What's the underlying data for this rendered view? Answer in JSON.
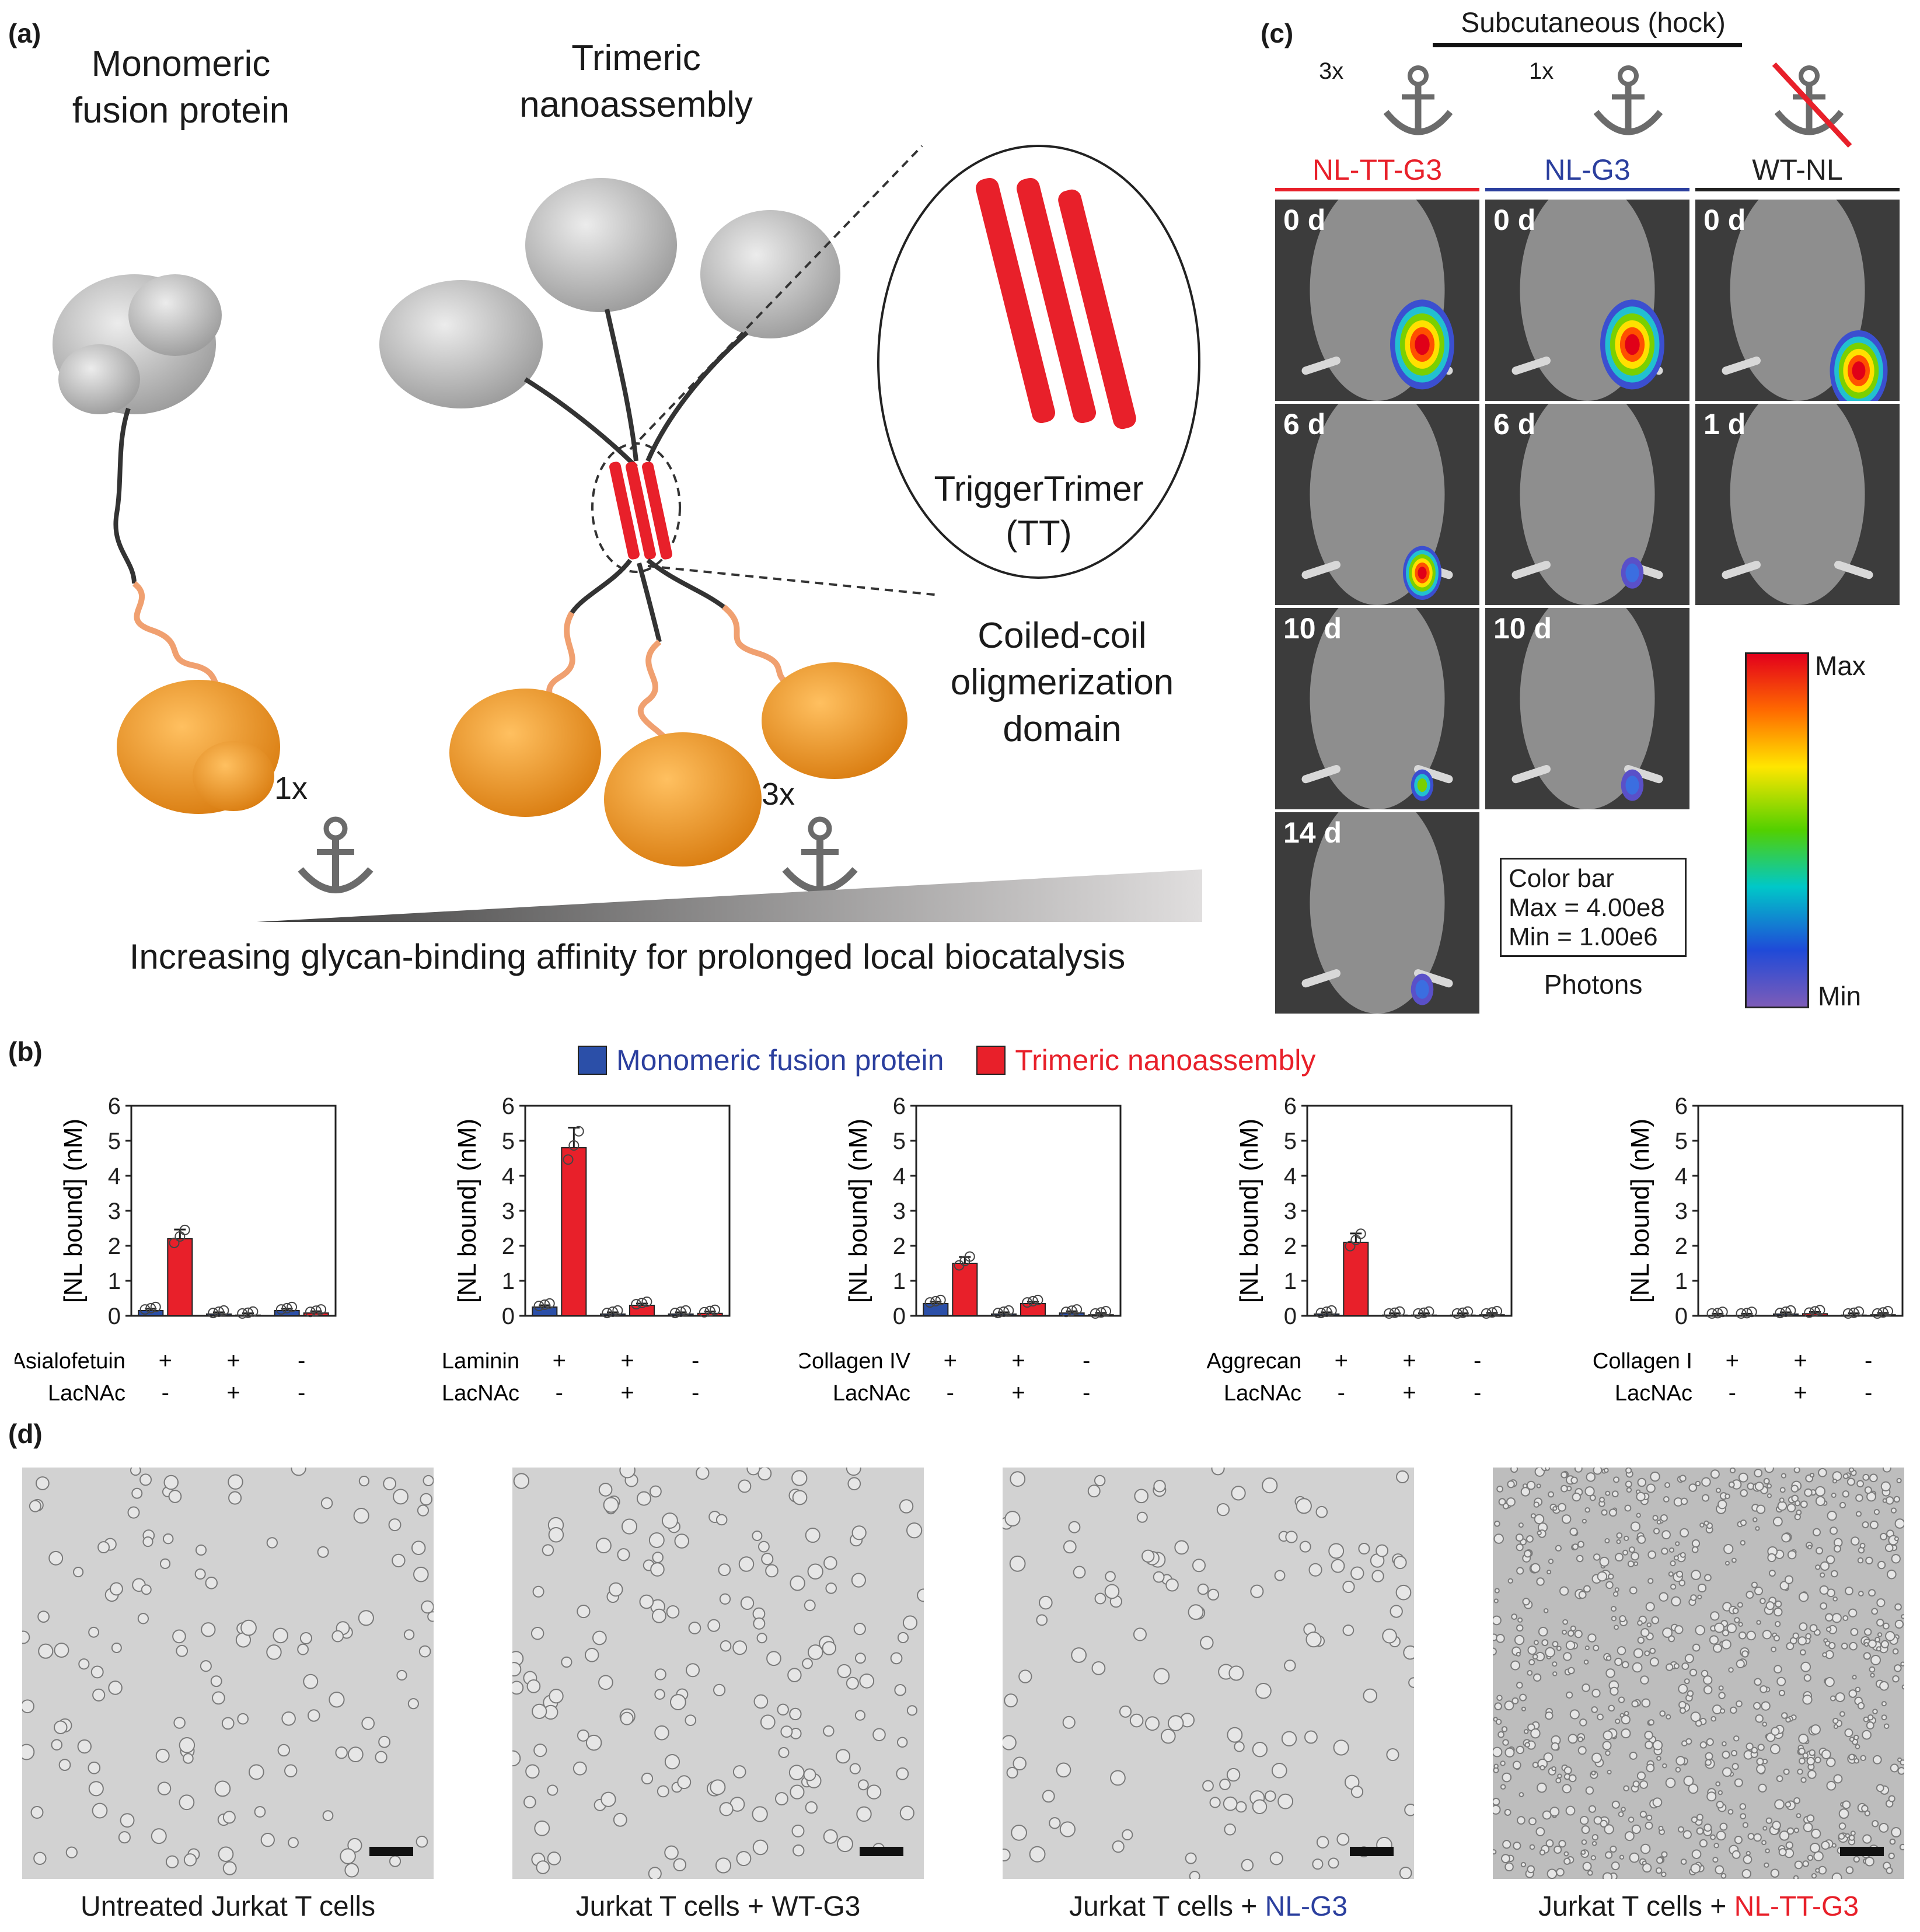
{
  "panel_a": {
    "label": "(a)",
    "monomer_title": [
      "Monomeric",
      "fusion protein"
    ],
    "trimer_title": [
      "Trimeric",
      "nanoassembly"
    ],
    "tt_label": [
      "TriggerTrimer",
      "(TT)"
    ],
    "coil_label": [
      "Coiled-coil",
      "oligmerization",
      "domain"
    ],
    "anchor_1x": "1x",
    "anchor_3x": "3x",
    "affinity_caption": "Increasing glycan-binding affinity for prolonged local biocatalysis",
    "colors": {
      "grey_domain": "#c8c8c8",
      "orange_domain": "#f5a12b",
      "tt_red": "#e8202a",
      "linker": "#333333",
      "glycan_linker": "#f0a070"
    }
  },
  "panel_c": {
    "label": "(c)",
    "route": "Subcutaneous (hock)",
    "groups": [
      {
        "name": "NL-TT-G3",
        "anchor": "3x",
        "color": "#e8202a",
        "crossed": false
      },
      {
        "name": "NL-G3",
        "anchor": "1x",
        "color": "#2b3f9e",
        "crossed": false
      },
      {
        "name": "WT-NL",
        "anchor": "",
        "color": "#222222",
        "crossed": true
      }
    ],
    "tiles": [
      [
        "0 d",
        "0 d",
        "0 d"
      ],
      [
        "6 d",
        "6 d",
        "1 d"
      ],
      [
        "10 d",
        "10 d"
      ],
      [
        "14 d"
      ]
    ],
    "colorbar": {
      "title": "Color bar",
      "max_line": "Max = 4.00e8",
      "min_line": "Min = 1.00e6",
      "unit": "Photons",
      "max_label": "Max",
      "min_label": "Min"
    }
  },
  "panel_b": {
    "label": "(b)",
    "legend": [
      {
        "name": "Monomeric fusion protein",
        "color": "#2b4fa8"
      },
      {
        "name": "Trimeric nanoassembly",
        "color": "#e8202a"
      }
    ],
    "ylabel": "[NL bound] (nM)",
    "ylim": [
      0,
      6
    ],
    "yticks": [
      "0",
      "1",
      "2",
      "3",
      "4",
      "5",
      "6"
    ],
    "lacnac_label": "LacNAc",
    "conditions": [
      {
        "substrate": "+",
        "lacnac": "-"
      },
      {
        "substrate": "+",
        "lacnac": "+"
      },
      {
        "substrate": "-",
        "lacnac": "-"
      }
    ]
  },
  "chart_data": [
    {
      "type": "bar",
      "substrate": "Asialofetuin",
      "categories": [
        "+/-",
        "+/+",
        "-/-"
      ],
      "series": [
        {
          "name": "Monomeric fusion protein",
          "values": [
            0.15,
            0.05,
            0.15
          ]
        },
        {
          "name": "Trimeric nanoassembly",
          "values": [
            2.2,
            0.02,
            0.08
          ]
        }
      ],
      "ylabel": "[NL bound] (nM)",
      "ylim": [
        0,
        6
      ]
    },
    {
      "type": "bar",
      "substrate": "Laminin",
      "categories": [
        "+/-",
        "+/+",
        "-/-"
      ],
      "series": [
        {
          "name": "Monomeric fusion protein",
          "values": [
            0.25,
            0.05,
            0.05
          ]
        },
        {
          "name": "Trimeric nanoassembly",
          "values": [
            4.8,
            0.3,
            0.07
          ]
        }
      ],
      "ylabel": "[NL bound] (nM)",
      "ylim": [
        0,
        6
      ]
    },
    {
      "type": "bar",
      "substrate": "Collagen IV",
      "categories": [
        "+/-",
        "+/+",
        "-/-"
      ],
      "series": [
        {
          "name": "Monomeric fusion protein",
          "values": [
            0.35,
            0.05,
            0.08
          ]
        },
        {
          "name": "Trimeric nanoassembly",
          "values": [
            1.5,
            0.35,
            0.03
          ]
        }
      ],
      "ylabel": "[NL bound] (nM)",
      "ylim": [
        0,
        6
      ]
    },
    {
      "type": "bar",
      "substrate": "Aggrecan",
      "categories": [
        "+/-",
        "+/+",
        "-/-"
      ],
      "series": [
        {
          "name": "Monomeric fusion protein",
          "values": [
            0.05,
            0.02,
            0.02
          ]
        },
        {
          "name": "Trimeric nanoassembly",
          "values": [
            2.1,
            0.02,
            0.03
          ]
        }
      ],
      "ylabel": "[NL bound] (nM)",
      "ylim": [
        0,
        6
      ]
    },
    {
      "type": "bar",
      "substrate": "Collagen I",
      "categories": [
        "+/-",
        "+/+",
        "-/-"
      ],
      "series": [
        {
          "name": "Monomeric fusion protein",
          "values": [
            0.01,
            0.05,
            0.02
          ]
        },
        {
          "name": "Trimeric nanoassembly",
          "values": [
            0.01,
            0.06,
            0.03
          ]
        }
      ],
      "ylabel": "[NL bound] (nM)",
      "ylim": [
        0,
        6
      ]
    }
  ],
  "panel_d": {
    "label": "(d)",
    "images": [
      {
        "caption_prefix": "Untreated Jurkat T cells",
        "caption_suffix": "",
        "suffix_color": "#1a1a1a"
      },
      {
        "caption_prefix": "Jurkat T cells + WT-G3",
        "caption_suffix": "",
        "suffix_color": "#1a1a1a"
      },
      {
        "caption_prefix": "Jurkat T cells + ",
        "caption_suffix": "NL-G3",
        "suffix_color": "#2b3f9e"
      },
      {
        "caption_prefix": "Jurkat T cells + ",
        "caption_suffix": "NL-TT-G3",
        "suffix_color": "#e8202a"
      }
    ]
  }
}
